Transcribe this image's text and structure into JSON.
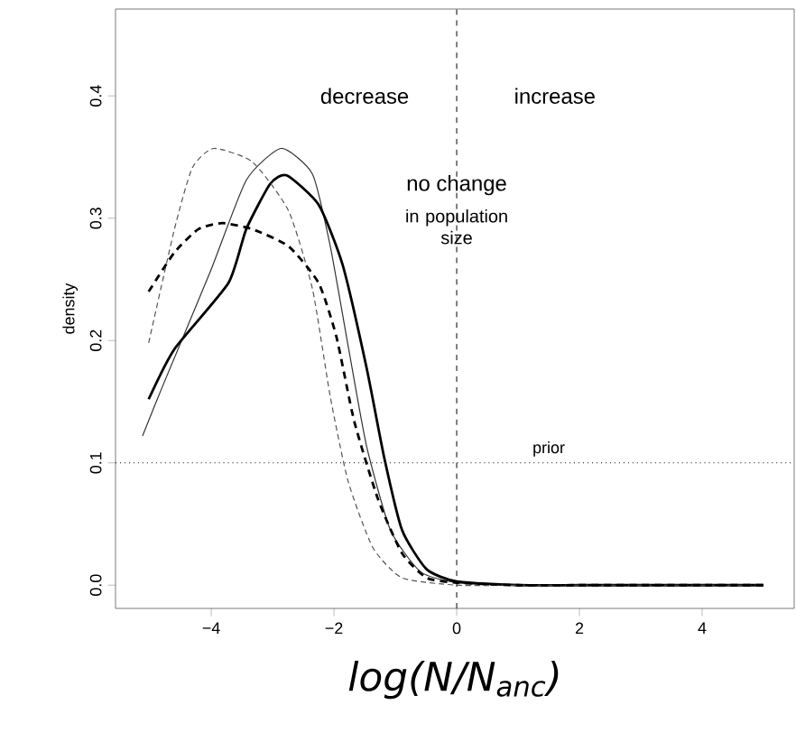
{
  "chart_data": {
    "type": "line",
    "xlabel": "log(N/N$_{anc}$)",
    "ylabel": "density",
    "xlim": [
      -5.56,
      5.5
    ],
    "ylim": [
      -0.019,
      0.471
    ],
    "xticks": [
      {
        "value": -4,
        "label": "−4"
      },
      {
        "value": -2,
        "label": "−2"
      },
      0,
      2,
      4
    ],
    "yticks": [
      {
        "value": 0,
        "label": "0.0"
      },
      0.1,
      0.2,
      0.3,
      0.4
    ],
    "series": [
      {
        "color": "#333333",
        "line_style": "solid",
        "x": [
          -5.12,
          -4.79,
          -4.01,
          -3.43,
          -2.86,
          -2.35,
          -2.06,
          -1.76,
          -1.47,
          -1.08,
          -0.59,
          0,
          1,
          2,
          3,
          4,
          5
        ],
        "values": [
          0.122,
          0.163,
          0.257,
          0.331,
          0.357,
          0.336,
          0.277,
          0.193,
          0.114,
          0.045,
          0.011,
          0.002,
          0,
          0,
          0,
          0,
          0
        ]
      },
      {
        "color": "#000000",
        "line_style": "solid",
        "x": [
          -5.02,
          -4.6,
          -3.72,
          -3.43,
          -3.04,
          -2.77,
          -2.25,
          -1.86,
          -1.47,
          -1.18,
          -0.89,
          -0.49,
          0,
          1,
          2,
          3,
          4,
          5
        ],
        "values": [
          0.152,
          0.193,
          0.247,
          0.291,
          0.328,
          0.335,
          0.311,
          0.262,
          0.178,
          0.104,
          0.045,
          0.013,
          0.003,
          0,
          0,
          0,
          0,
          0
        ]
      },
      {
        "color": "#555555",
        "line_style": "dashed",
        "x": [
          -5.02,
          -4.6,
          -4.31,
          -3.96,
          -3.33,
          -2.74,
          -2.35,
          -2.06,
          -1.77,
          -1.37,
          -0.89,
          0,
          1,
          2,
          3,
          4,
          5
        ],
        "values": [
          0.198,
          0.291,
          0.341,
          0.357,
          0.346,
          0.306,
          0.242,
          0.154,
          0.085,
          0.031,
          0.006,
          0,
          0,
          0,
          0,
          0,
          0
        ]
      },
      {
        "color": "#000000",
        "line_style": "dashed",
        "x": [
          -5.02,
          -4.6,
          -4.21,
          -3.82,
          -3.33,
          -2.74,
          -2.25,
          -1.96,
          -1.67,
          -1.28,
          -0.89,
          -0.49,
          0,
          1,
          2,
          3,
          4,
          5
        ],
        "values": [
          0.24,
          0.272,
          0.291,
          0.296,
          0.291,
          0.277,
          0.247,
          0.203,
          0.134,
          0.07,
          0.026,
          0.006,
          0.002,
          0,
          0,
          0,
          0,
          0
        ]
      }
    ],
    "ref_lines": [
      {
        "axis": "x",
        "value": 0,
        "line_style": "dashed",
        "color": "#000000"
      },
      {
        "axis": "y",
        "value": 0.1,
        "line_style": "dotted",
        "color": "#000000",
        "label": "prior"
      }
    ],
    "annotations": [
      "decrease",
      "increase",
      "no change",
      "in population size"
    ],
    "grid": false,
    "marker": "none"
  }
}
